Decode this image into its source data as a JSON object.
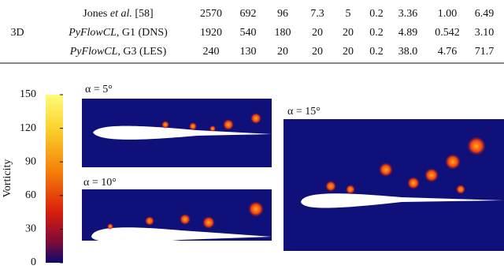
{
  "table": {
    "group": "3D",
    "rows": [
      {
        "name": [
          {
            "text": "Jones "
          },
          {
            "text": "et al.",
            "italic": true
          },
          {
            "text": " [58]"
          }
        ],
        "cells": [
          "2570",
          "692",
          "96",
          "7.3",
          "5",
          "0.2",
          "3.36",
          "1.00",
          "6.49"
        ]
      },
      {
        "name": [
          {
            "text": "PyFlowCL",
            "italic": true
          },
          {
            "text": ", G1 (DNS)"
          }
        ],
        "cells": [
          "1920",
          "540",
          "180",
          "20",
          "20",
          "0.2",
          "4.89",
          "0.542",
          "3.10"
        ]
      },
      {
        "name": [
          {
            "text": "PyFlowCL",
            "italic": true
          },
          {
            "text": ", G3 (LES)"
          }
        ],
        "cells": [
          "240",
          "130",
          "20",
          "20",
          "20",
          "0.2",
          "38.0",
          "4.76",
          "71.7"
        ]
      }
    ]
  },
  "colorbar": {
    "label": "Vorticity",
    "lim": [
      0,
      150
    ],
    "ticks": [
      0,
      30,
      60,
      90,
      120,
      150
    ]
  },
  "panels": [
    {
      "label": "α = 5°"
    },
    {
      "label": "α = 10°"
    },
    {
      "label": "α = 15°"
    }
  ]
}
